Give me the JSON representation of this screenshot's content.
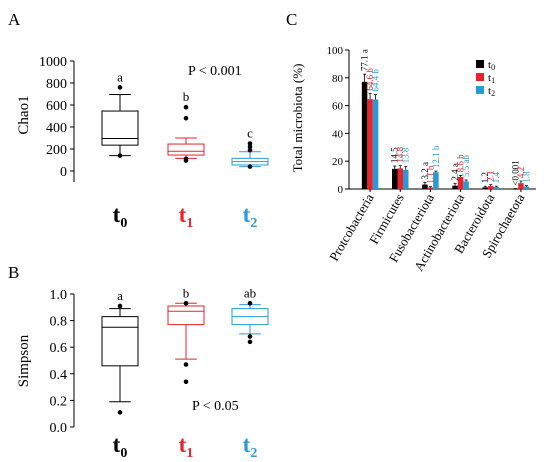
{
  "colors": {
    "t0": "#000000",
    "t1": "#e8232a",
    "t2": "#2a9ad6"
  },
  "chart_data": [
    {
      "panel": "A",
      "type": "box",
      "ylabel": "Chao1",
      "ylim": [
        -100,
        1000
      ],
      "yticks": [
        0,
        200,
        400,
        600,
        800,
        1000
      ],
      "annotation": "P < 0.001",
      "groups": [
        {
          "label": "t",
          "sub": "0",
          "color_key": "t0",
          "letter": "a",
          "whisker_low": 140,
          "q1": 235,
          "median": 295,
          "q3": 545,
          "whisker_high": 695,
          "outliers": [
            140,
            760
          ]
        },
        {
          "label": "t",
          "sub": "1",
          "color_key": "t1",
          "letter": "b",
          "whisker_low": 115,
          "q1": 145,
          "median": 180,
          "q3": 245,
          "whisker_high": 300,
          "outliers": [
            95,
            110,
            480,
            580
          ]
        },
        {
          "label": "t",
          "sub": "2",
          "color_key": "t2",
          "letter": "c",
          "whisker_low": 40,
          "q1": 55,
          "median": 85,
          "q3": 115,
          "whisker_high": 175,
          "outliers": [
            40,
            190,
            220,
            250
          ]
        }
      ]
    },
    {
      "panel": "B",
      "type": "box",
      "ylabel": "Simpson",
      "ylim": [
        0,
        1.0
      ],
      "yticks": [
        0.0,
        0.2,
        0.4,
        0.6,
        0.8,
        1.0
      ],
      "annotation": "P < 0.05",
      "groups": [
        {
          "label": "t",
          "sub": "0",
          "color_key": "t0",
          "letter": "a",
          "whisker_low": 0.19,
          "q1": 0.46,
          "median": 0.75,
          "q3": 0.83,
          "whisker_high": 0.89,
          "outliers": [
            0.11,
            0.91
          ]
        },
        {
          "label": "t",
          "sub": "1",
          "color_key": "t1",
          "letter": "b",
          "whisker_low": 0.51,
          "q1": 0.77,
          "median": 0.87,
          "q3": 0.91,
          "whisker_high": 0.93,
          "outliers": [
            0.34,
            0.47,
            0.93
          ]
        },
        {
          "label": "t",
          "sub": "2",
          "color_key": "t2",
          "letter": "ab",
          "whisker_low": 0.7,
          "q1": 0.77,
          "median": 0.83,
          "q3": 0.89,
          "whisker_high": 0.92,
          "outliers": [
            0.64,
            0.68,
            0.93
          ]
        }
      ]
    },
    {
      "panel": "C",
      "type": "bar",
      "ylabel": "Total microbiota (%)",
      "ylim": [
        0,
        100
      ],
      "yticks": [
        0,
        20,
        40,
        60,
        80,
        100
      ],
      "categories": [
        "Protcobacteria",
        "Firmicutes",
        "Fusobacteriota",
        "Actinobacteriota",
        "Bacteroidota",
        "Spirochaetota"
      ],
      "legend": [
        "t0",
        "t1",
        "t2"
      ],
      "series": [
        {
          "name": "t0",
          "color_key": "t0",
          "values": [
            77.1,
            14.5,
            3.2,
            2.4,
            1.2,
            0.001
          ],
          "labels": [
            "77.1 a",
            "14.5",
            "3.2 a",
            "2.4 a",
            "1.2",
            "<0.001"
          ],
          "errors": [
            5.5,
            2.0,
            1.5,
            1.5,
            0.8,
            0.3
          ]
        },
        {
          "name": "t1",
          "color_key": "t1",
          "values": [
            64.6,
            14.8,
            1.1,
            8.6,
            2.1,
            4.2
          ],
          "labels": [
            "64.6 b",
            "14.8",
            "1.1 b",
            "8.6 b",
            "2.1",
            "4.2"
          ],
          "errors": [
            4.0,
            2.0,
            0.6,
            1.2,
            1.0,
            1.5
          ]
        },
        {
          "name": "t2",
          "color_key": "t2",
          "values": [
            64.4,
            13.8,
            12.1,
            5.5,
            1.4,
            1.8
          ],
          "labels": [
            "64.4 b",
            "13.8",
            "12.1 b",
            "5.5 ab",
            "1.4",
            "1.8"
          ],
          "errors": [
            3.5,
            2.5,
            0.8,
            1.0,
            0.6,
            0.6
          ]
        }
      ]
    }
  ]
}
